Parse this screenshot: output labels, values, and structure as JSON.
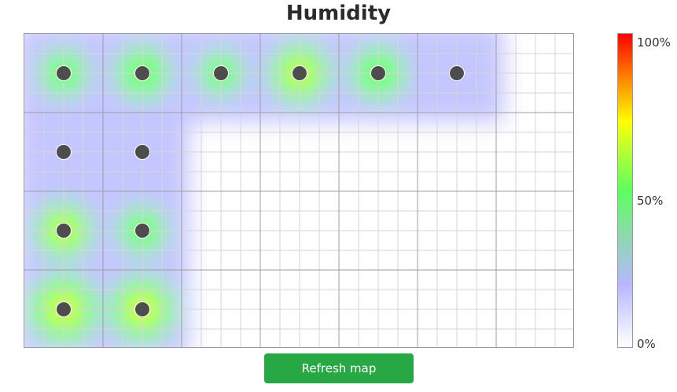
{
  "title": "Humidity",
  "button": {
    "refresh_label": "Refresh map"
  },
  "legend": {
    "max_label": "100%",
    "mid_label": "50%",
    "min_label": "0%",
    "colors": [
      "#ffffff",
      "#b6b8ff",
      "#5cff5c",
      "#ffff00",
      "#ff0000"
    ]
  },
  "sensors": [
    {
      "col": 0,
      "row": 0,
      "humidity": 0.4
    },
    {
      "col": 1,
      "row": 0,
      "humidity": 0.5
    },
    {
      "col": 2,
      "row": 0,
      "humidity": 0.35
    },
    {
      "col": 3,
      "row": 0,
      "humidity": 0.6
    },
    {
      "col": 4,
      "row": 0,
      "humidity": 0.5
    },
    {
      "col": 5,
      "row": 0,
      "humidity": 0.3
    },
    {
      "col": 0,
      "row": 1,
      "humidity": 0.3
    },
    {
      "col": 1,
      "row": 1,
      "humidity": 0.3
    },
    {
      "col": 0,
      "row": 2,
      "humidity": 0.55
    },
    {
      "col": 1,
      "row": 2,
      "humidity": 0.4
    },
    {
      "col": 0,
      "row": 3,
      "humidity": 0.75
    },
    {
      "col": 1,
      "row": 3,
      "humidity": 0.7
    }
  ],
  "colors": {
    "button": "#28a745",
    "sensor": "#4d4d4d"
  }
}
